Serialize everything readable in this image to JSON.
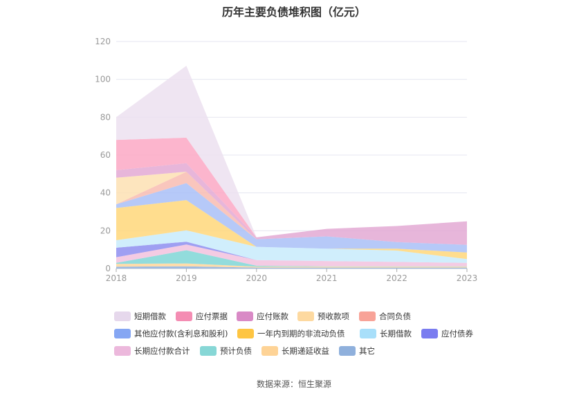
{
  "title": "历年主要负债堆积图（亿元）",
  "source": "数据来源：恒生聚源",
  "chart_data": {
    "type": "area",
    "stacked": true,
    "x": [
      "2018",
      "2019",
      "2020",
      "2021",
      "2022",
      "2023"
    ],
    "ylim": [
      0,
      120
    ],
    "yticks": [
      0,
      20,
      40,
      60,
      80,
      100,
      120
    ],
    "grid": true,
    "legend_position": "bottom",
    "series": [
      {
        "name": "其它",
        "color": "#8fb0dc",
        "values": [
          1.0,
          1.2,
          0.5,
          0.5,
          0.5,
          0.5
        ]
      },
      {
        "name": "长期递延收益",
        "color": "#ffd69a",
        "values": [
          1.5,
          1.5,
          0.5,
          0.5,
          0.5,
          0.5
        ]
      },
      {
        "name": "预计负债",
        "color": "#7fd6d6",
        "values": [
          0.5,
          7.0,
          0.5,
          0.2,
          0.2,
          0.2
        ]
      },
      {
        "name": "长期应付款合计",
        "color": "#f2c2de",
        "values": [
          3.0,
          3.0,
          3.0,
          2.8,
          2.3,
          1.8
        ]
      },
      {
        "name": "应付债券",
        "color": "#8e8ef0",
        "values": [
          5.0,
          1.5,
          0.0,
          0.0,
          0.0,
          0.0
        ]
      },
      {
        "name": "长期借款",
        "color": "#c8ebfb",
        "values": [
          4.0,
          6.0,
          7.0,
          6.5,
          6.0,
          2.0
        ]
      },
      {
        "name": "一年内到期的非流动负债",
        "color": "#ffd77a",
        "values": [
          17.0,
          16.0,
          0.0,
          0.0,
          1.0,
          3.5
        ]
      },
      {
        "name": "其他应付款(含利息和股利)",
        "color": "#a9bff7",
        "values": [
          2.0,
          9.0,
          4.0,
          6.5,
          3.5,
          4.0
        ]
      },
      {
        "name": "合同负债",
        "color": "#f8bcb2",
        "values": [
          0.0,
          6.0,
          0.0,
          0.0,
          0.0,
          0.0
        ]
      },
      {
        "name": "预收款项",
        "color": "#fde0b3",
        "values": [
          14.0,
          0.0,
          0.0,
          0.0,
          0.0,
          0.0
        ]
      },
      {
        "name": "应付账款",
        "color": "#e3a9d3",
        "values": [
          4.0,
          4.5,
          1.0,
          4.0,
          8.5,
          12.5
        ]
      },
      {
        "name": "应付票据",
        "color": "#fba8c4",
        "values": [
          16.0,
          13.5,
          0.0,
          0.0,
          0.0,
          0.0
        ]
      },
      {
        "name": "短期借款",
        "color": "#ece0f0",
        "values": [
          12.0,
          38.0,
          0.0,
          0.0,
          0.0,
          0.0
        ]
      }
    ]
  },
  "legend": [
    {
      "label": "短期借款",
      "color": "#e6d8ec"
    },
    {
      "label": "应付票据",
      "color": "#f48db3"
    },
    {
      "label": "应付账款",
      "color": "#d98ac6"
    },
    {
      "label": "预收款项",
      "color": "#fdd9a0"
    },
    {
      "label": "合同负债",
      "color": "#f8a398"
    },
    {
      "label": "其他应付款(含利息和股利)",
      "color": "#85a6f3"
    },
    {
      "label": "一年内到期的非流动负债",
      "color": "#fec542"
    },
    {
      "label": "长期借款",
      "color": "#a8dffa"
    },
    {
      "label": "应付债券",
      "color": "#7a7cf0"
    },
    {
      "label": "长期应付款合计",
      "color": "#ecb8dc"
    },
    {
      "label": "预计负债",
      "color": "#87d7d6"
    },
    {
      "label": "长期递延收益",
      "color": "#fed396"
    },
    {
      "label": "其它",
      "color": "#8fb0dc"
    }
  ]
}
